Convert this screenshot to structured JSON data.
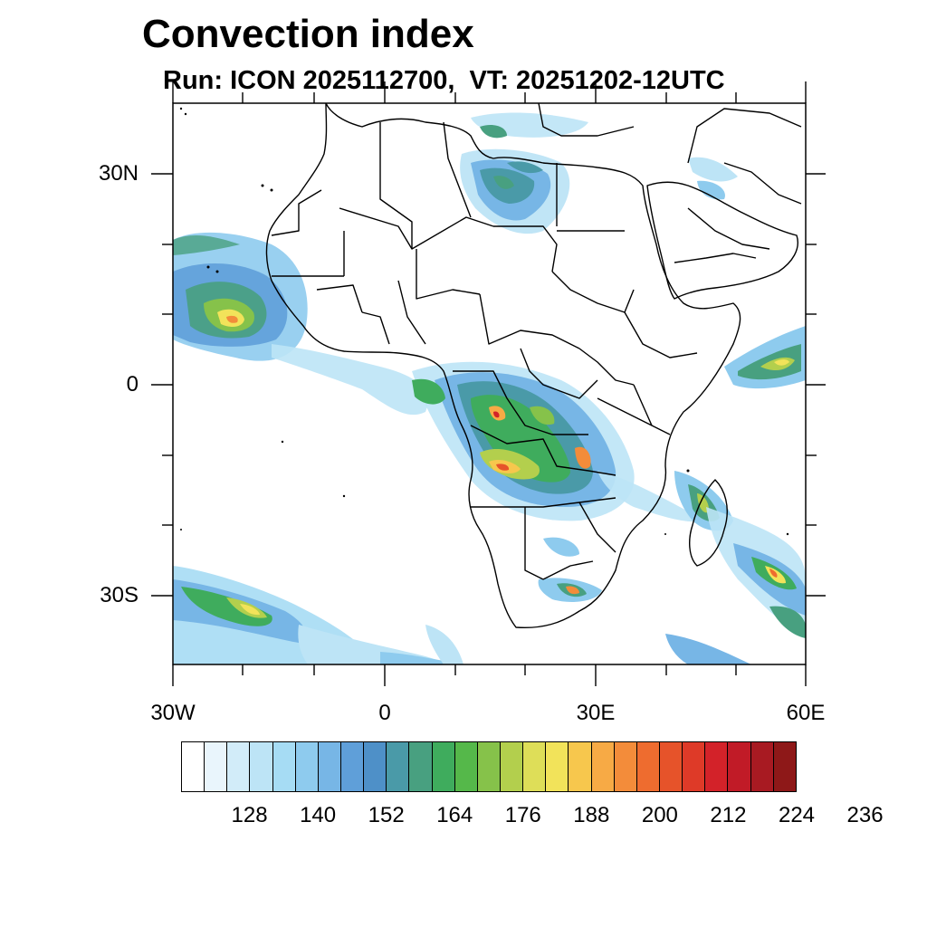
{
  "title": "Convection index",
  "subtitle": "Run: ICON 2025112700,  VT: 20251202-12UTC",
  "chart_data": {
    "type": "filled-contour map",
    "variable": "Convection index",
    "model": "ICON",
    "run": "2025112700",
    "valid_time": "20251202-12UTC",
    "domain": {
      "lon_range": [
        -30,
        60
      ],
      "lat_range": [
        -40,
        40
      ]
    },
    "lat_ticks": [
      "30N",
      "0",
      "30S"
    ],
    "lon_ticks": [
      "30W",
      "0",
      "30E",
      "60E"
    ],
    "colorbar": {
      "labels": [
        "128",
        "140",
        "152",
        "164",
        "176",
        "188",
        "200",
        "212",
        "224",
        "236"
      ],
      "colors": [
        "#ffffff",
        "#e9f5fc",
        "#d2ecf9",
        "#bde4f6",
        "#a6dcf4",
        "#8ecbee",
        "#77b6e6",
        "#5f9fd9",
        "#4e90c8",
        "#4a9aa8",
        "#48a080",
        "#3fac5d",
        "#55b84a",
        "#86c24a",
        "#b3cf4d",
        "#dede58",
        "#f2e35a",
        "#f7c74d",
        "#f7aa45",
        "#f38c3a",
        "#ee6c2f",
        "#e6532a",
        "#de3a28",
        "#d32229",
        "#c11b27",
        "#a81a22",
        "#8e1818"
      ]
    },
    "features": [
      "West African Atlantic convection near 10N-20N",
      "Central African convection belt 0-15S",
      "Madagascar and SW Indian Ocean bands",
      "South Atlantic frontal bands near 30S-40S",
      "Saharan/Libyan disturbance near 25N-32N",
      "Arabian Sea convection near 5N"
    ]
  }
}
